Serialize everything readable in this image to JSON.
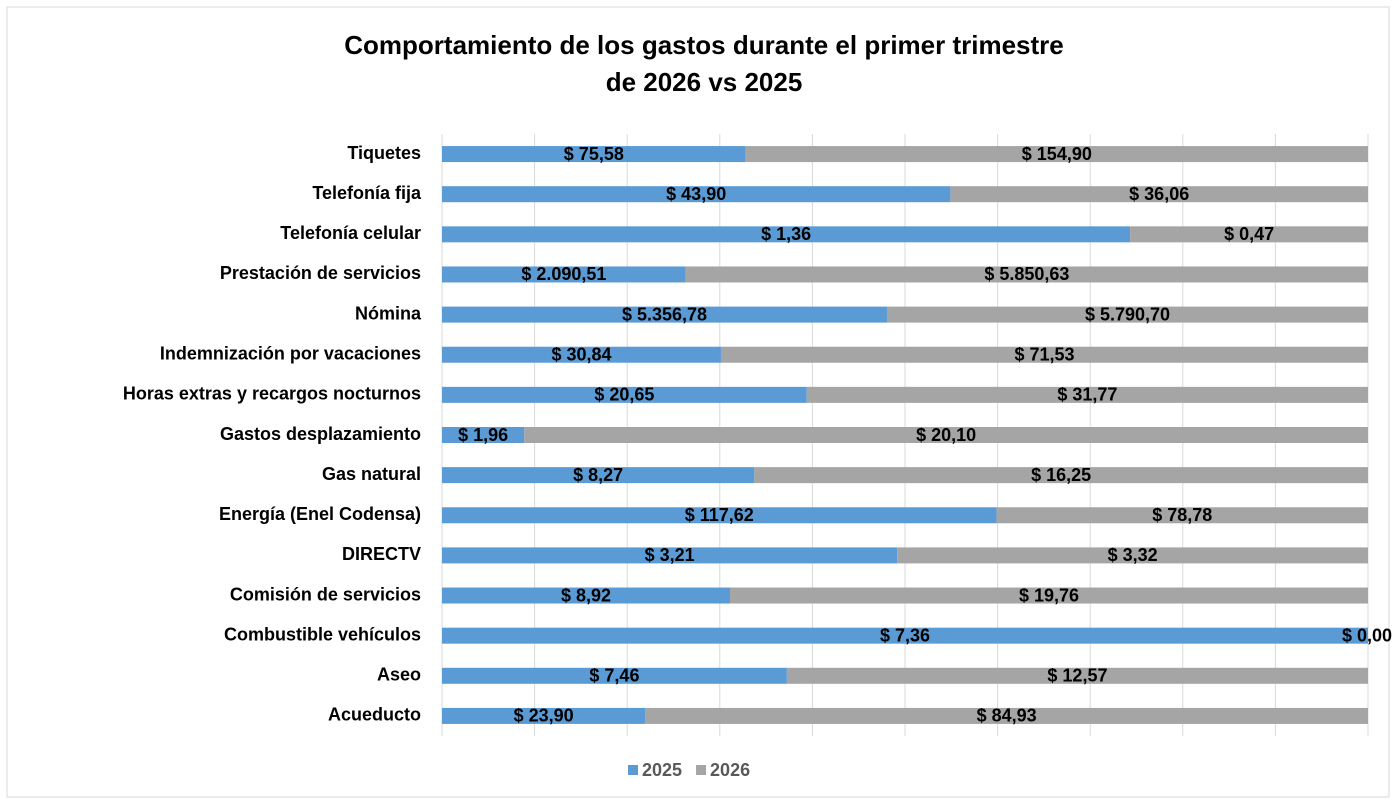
{
  "chart_data": {
    "type": "bar",
    "orientation": "horizontal",
    "stacked": "percent",
    "title": [
      "Comportamiento  de los gastos durante el primer trimestre",
      "de 2026 vs 2025"
    ],
    "categories": [
      "Tiquetes",
      "Telefonía fija",
      "Telefonía celular",
      "Prestación de servicios",
      "Nómina",
      "Indemnización por vacaciones",
      "Horas extras y recargos nocturnos",
      "Gastos desplazamiento",
      "Gas natural",
      "Energía (Enel Codensa)",
      "DIRECTV",
      "Comisión de servicios",
      "Combustible vehículos",
      "Aseo",
      "Acueducto"
    ],
    "series": [
      {
        "name": "2025",
        "color": "#5b9bd5",
        "values": [
          75.58,
          43.9,
          1.36,
          2090.51,
          5356.78,
          30.84,
          20.65,
          1.96,
          8.27,
          117.62,
          3.21,
          8.92,
          7.36,
          7.46,
          23.9
        ],
        "value_labels": [
          "$ 75,58",
          "$ 43,90",
          "$ 1,36",
          "$ 2.090,51",
          "$ 5.356,78",
          "$ 30,84",
          "$ 20,65",
          "$ 1,96",
          "$ 8,27",
          "$ 117,62",
          "$ 3,21",
          "$ 8,92",
          "$ 7,36",
          "$ 7,46",
          "$ 23,90"
        ]
      },
      {
        "name": "2026",
        "color": "#a5a5a5",
        "values": [
          154.9,
          36.06,
          0.47,
          5850.63,
          5790.7,
          71.53,
          31.77,
          20.1,
          16.25,
          78.78,
          3.32,
          19.76,
          0.0,
          12.57,
          84.93
        ],
        "value_labels": [
          "$ 154,90",
          "$ 36,06",
          "$ 0,47",
          "$ 5.850,63",
          "$ 5.790,70",
          "$ 71,53",
          "$ 31,77",
          "$ 20,10",
          "$ 16,25",
          "$ 78,78",
          "$ 3,32",
          "$ 19,76",
          "$ 0,00",
          "$ 12,57",
          "$ 84,93"
        ]
      }
    ],
    "xlim": [
      0,
      100
    ],
    "xticks": [
      0,
      10,
      20,
      30,
      40,
      50,
      60,
      70,
      80,
      90,
      100
    ],
    "grid": true,
    "legend": "bottom"
  }
}
